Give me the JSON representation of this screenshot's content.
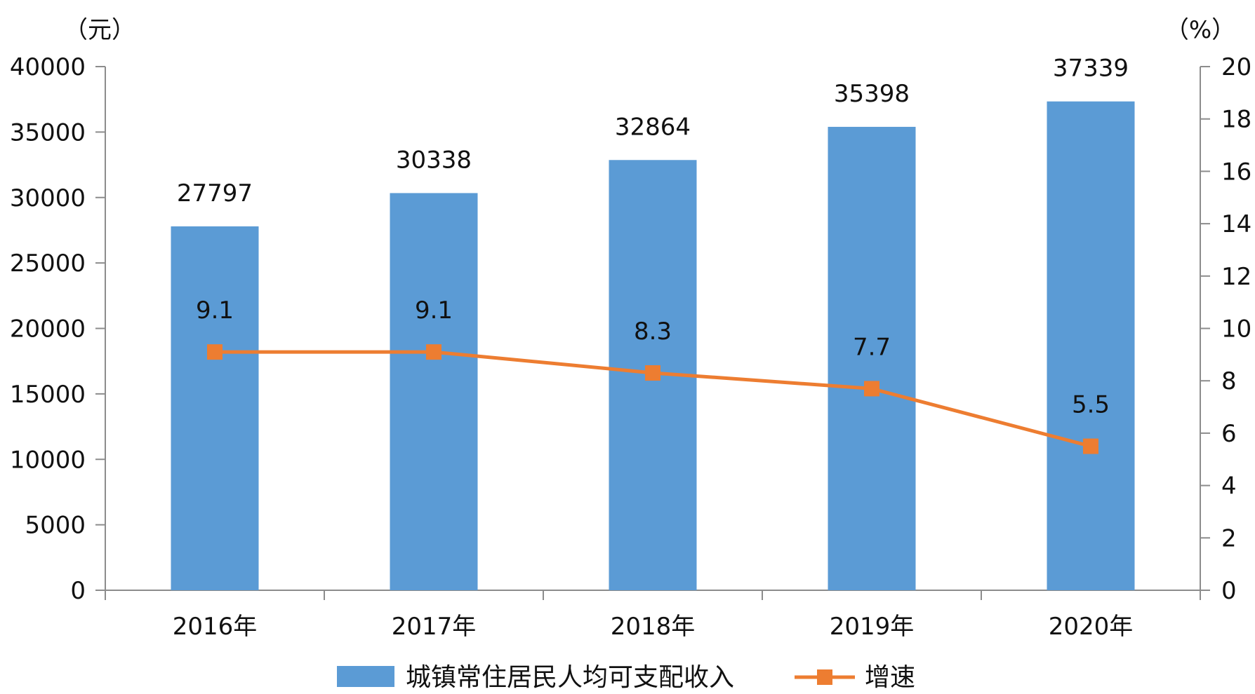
{
  "chart_data": {
    "type": "bar",
    "categories": [
      "2016年",
      "2017年",
      "2018年",
      "2019年",
      "2020年"
    ],
    "series": [
      {
        "name": "城镇常住居民人均可支配收入",
        "kind": "bar",
        "axis": "left",
        "color": "#5b9bd5",
        "values": [
          27797,
          30338,
          32864,
          35398,
          37339
        ]
      },
      {
        "name": "增速",
        "kind": "line",
        "axis": "right",
        "color": "#ed7d31",
        "marker": "square",
        "values": [
          9.1,
          9.1,
          8.3,
          7.7,
          5.5
        ]
      }
    ],
    "y_left": {
      "unit": "（元）",
      "range": [
        0,
        40000
      ],
      "ticks": [
        0,
        5000,
        10000,
        15000,
        20000,
        25000,
        30000,
        35000,
        40000
      ]
    },
    "y_right": {
      "unit": "（%）",
      "range": [
        0,
        20
      ],
      "ticks": [
        0,
        2,
        4,
        6,
        8,
        10,
        12,
        14,
        16,
        18,
        20
      ]
    },
    "grid": false,
    "legend_position": "bottom"
  }
}
